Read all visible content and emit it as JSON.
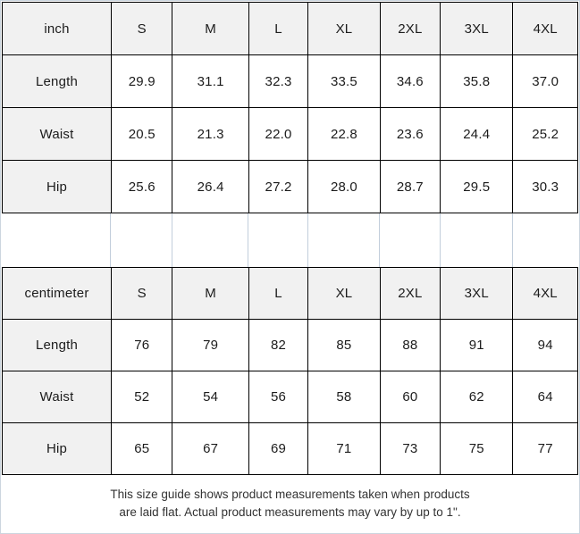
{
  "chart_data": [
    {
      "type": "table",
      "unit_label": "inch",
      "columns": [
        "S",
        "M",
        "L",
        "XL",
        "2XL",
        "3XL",
        "4XL"
      ],
      "rows": [
        {
          "label": "Length",
          "values": [
            "29.9",
            "31.1",
            "32.3",
            "33.5",
            "34.6",
            "35.8",
            "37.0"
          ]
        },
        {
          "label": "Waist",
          "values": [
            "20.5",
            "21.3",
            "22.0",
            "22.8",
            "23.6",
            "24.4",
            "25.2"
          ]
        },
        {
          "label": "Hip",
          "values": [
            "25.6",
            "26.4",
            "27.2",
            "28.0",
            "28.7",
            "29.5",
            "30.3"
          ]
        }
      ]
    },
    {
      "type": "table",
      "unit_label": "centimeter",
      "columns": [
        "S",
        "M",
        "L",
        "XL",
        "2XL",
        "3XL",
        "4XL"
      ],
      "rows": [
        {
          "label": "Length",
          "values": [
            "76",
            "79",
            "82",
            "85",
            "88",
            "91",
            "94"
          ]
        },
        {
          "label": "Waist",
          "values": [
            "52",
            "54",
            "56",
            "58",
            "60",
            "62",
            "64"
          ]
        },
        {
          "label": "Hip",
          "values": [
            "65",
            "67",
            "69",
            "71",
            "73",
            "75",
            "77"
          ]
        }
      ]
    }
  ],
  "footer": {
    "line1": "This size guide shows product measurements taken when products",
    "line2": "are laid flat. Actual product measurements may vary by up to 1\"."
  },
  "colors": {
    "header_cell_bg": "#f1f1f1",
    "table_border": "#000000",
    "text": "#1c1c1c",
    "spacer_line": "#c2cedb",
    "frame_line": "#ccd6df",
    "footer_text": "#333333"
  }
}
